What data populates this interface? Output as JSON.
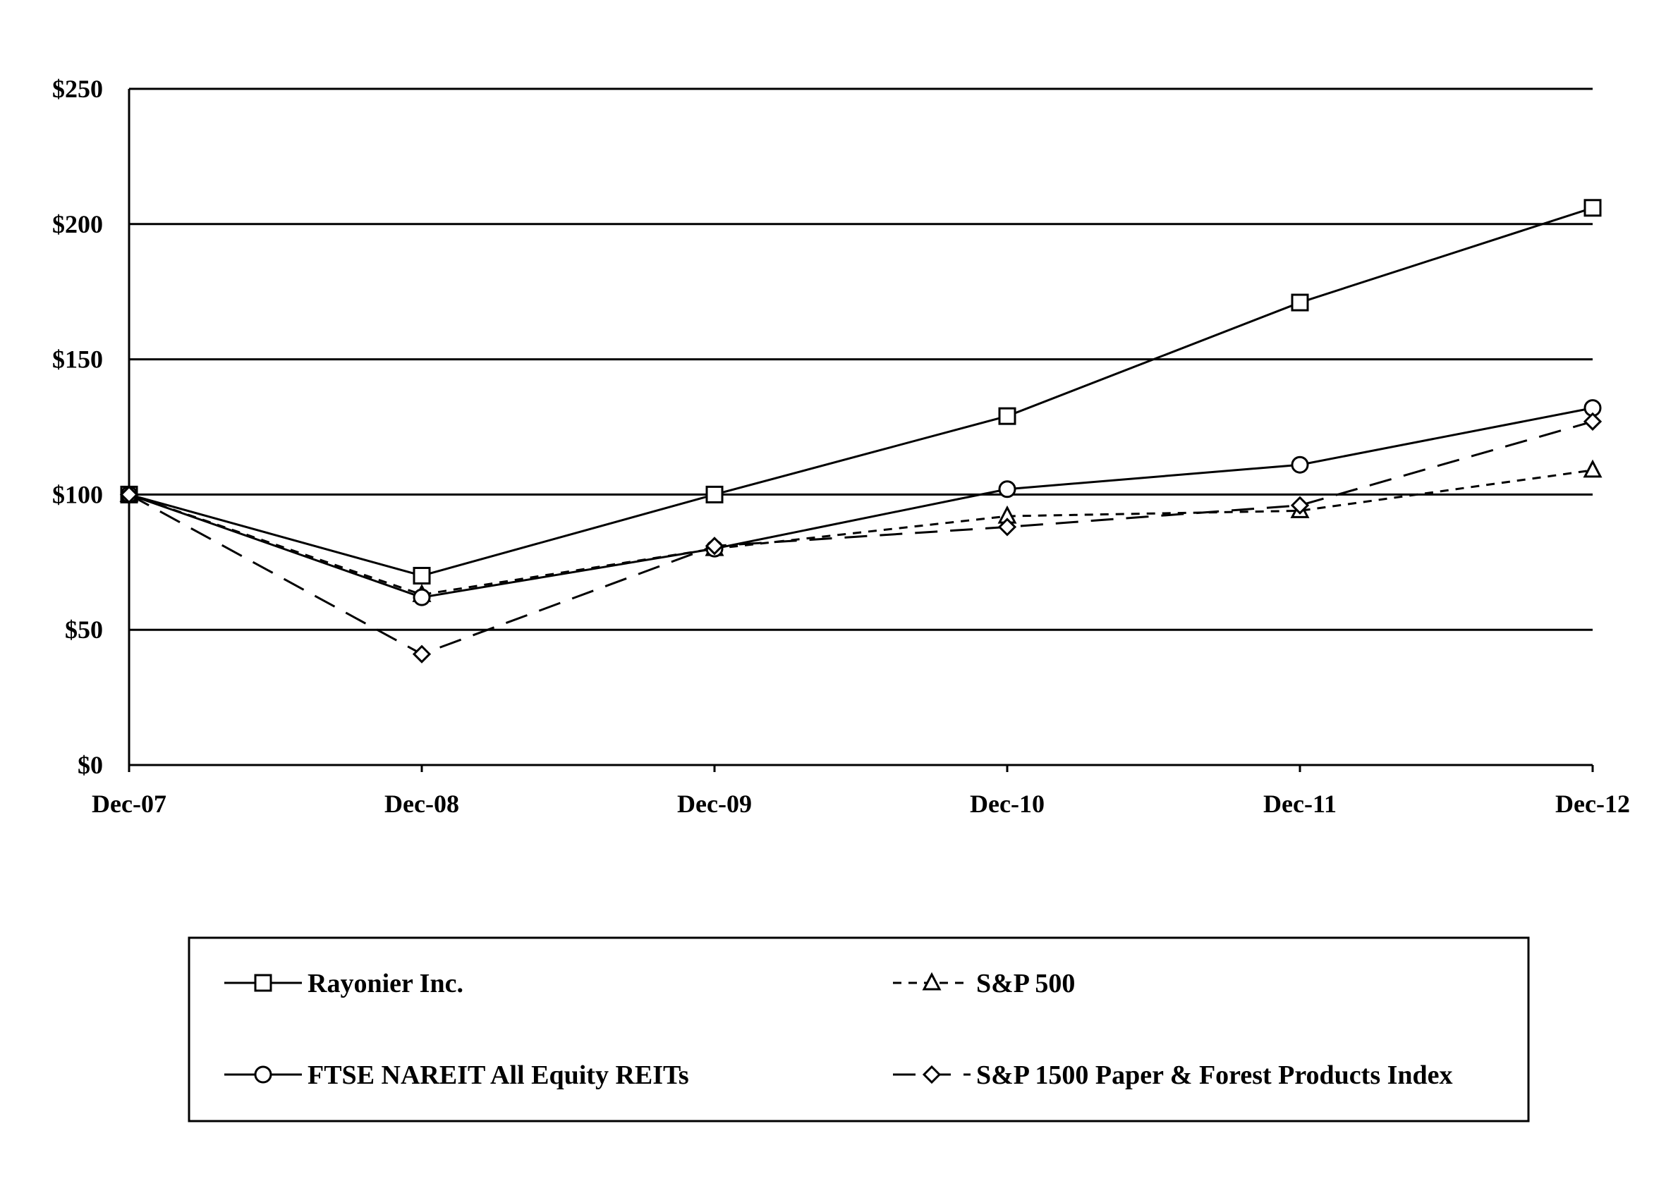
{
  "chart_data": {
    "type": "line",
    "categories": [
      "Dec-07",
      "Dec-08",
      "Dec-09",
      "Dec-10",
      "Dec-11",
      "Dec-12"
    ],
    "ylim": [
      0,
      250
    ],
    "yticks": [
      0,
      50,
      100,
      150,
      200,
      250
    ],
    "ytick_labels": [
      "$0",
      "$50",
      "$100",
      "$150",
      "$200",
      "$250"
    ],
    "grid": true,
    "legend_position": "bottom",
    "series": [
      {
        "name": "Rayonier Inc.",
        "marker": "square",
        "dash": "solid",
        "values": [
          100,
          70,
          100,
          129,
          171,
          206
        ]
      },
      {
        "name": "S&P 500",
        "marker": "triangle",
        "dash": "short-dash",
        "values": [
          100,
          63,
          80,
          92,
          94,
          109
        ]
      },
      {
        "name": "FTSE NAREIT All Equity REITs",
        "marker": "circle",
        "dash": "solid",
        "values": [
          100,
          62,
          80,
          102,
          111,
          132
        ]
      },
      {
        "name": "S&P 1500 Paper & Forest Products Index",
        "marker": "diamond",
        "dash": "long-dash",
        "values": [
          100,
          41,
          81,
          88,
          96,
          127
        ]
      }
    ]
  }
}
